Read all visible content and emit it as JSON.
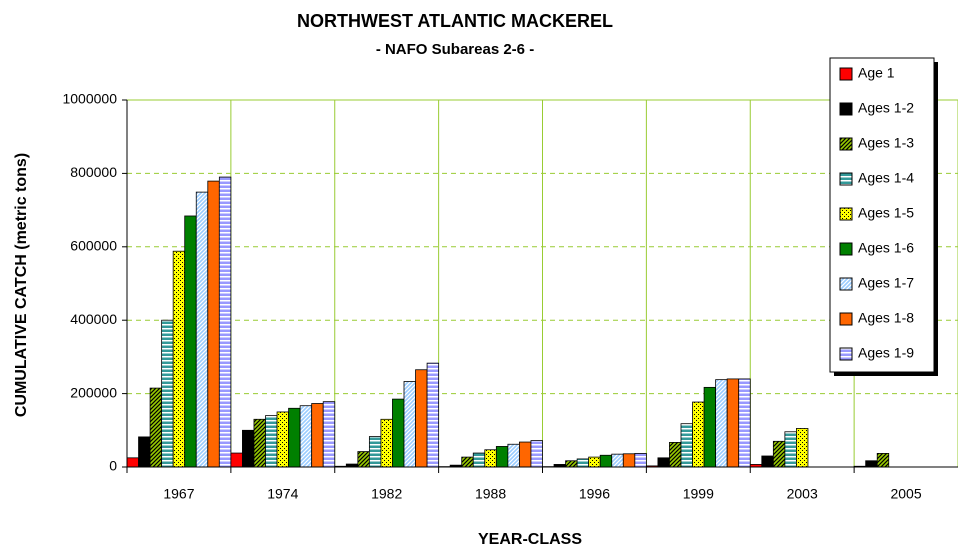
{
  "chart_data": {
    "type": "bar",
    "title": "NORTHWEST ATLANTIC MACKEREL",
    "subtitle": "- NAFO Subareas 2-6 -",
    "x_label": "YEAR-CLASS",
    "y_label": "CUMULATIVE CATCH (metric tons)",
    "categories": [
      "1967",
      "1974",
      "1982",
      "1988",
      "1996",
      "1999",
      "2003",
      "2005"
    ],
    "series": [
      {
        "name": "Age 1",
        "color": "#ff0000",
        "pattern": "solid",
        "values": [
          25000,
          38000,
          2000,
          1000,
          1000,
          3000,
          7000,
          2000
        ]
      },
      {
        "name": "Ages 1-2",
        "color": "#000000",
        "pattern": "solid",
        "values": [
          82000,
          100000,
          8000,
          5000,
          7000,
          25000,
          30000,
          17000
        ]
      },
      {
        "name": "Ages 1-3",
        "color": "#99cc00",
        "pattern": "diagonal",
        "values": [
          215000,
          130000,
          42000,
          27000,
          17000,
          67000,
          70000,
          37000
        ]
      },
      {
        "name": "Ages 1-4",
        "color": "#339999",
        "pattern": "horizontal",
        "values": [
          400000,
          140000,
          83000,
          38000,
          22000,
          118000,
          96000,
          null
        ]
      },
      {
        "name": "Ages 1-5",
        "color": "#ffff00",
        "pattern": "dots",
        "values": [
          588000,
          150000,
          130000,
          47000,
          27000,
          177000,
          105000,
          null
        ]
      },
      {
        "name": "Ages 1-6",
        "color": "#008000",
        "pattern": "solid",
        "values": [
          684000,
          160000,
          185000,
          56000,
          32000,
          217000,
          null,
          null
        ]
      },
      {
        "name": "Ages 1-7",
        "color": "#99ccff",
        "pattern": "diagonal",
        "values": [
          749000,
          167000,
          233000,
          62000,
          35000,
          238000,
          null,
          null
        ]
      },
      {
        "name": "Ages 1-8",
        "color": "#ff6600",
        "pattern": "solid",
        "values": [
          779000,
          173000,
          265000,
          68000,
          36000,
          240000,
          null,
          null
        ]
      },
      {
        "name": "Ages 1-9",
        "color": "#9999ff",
        "pattern": "horizontal",
        "values": [
          790000,
          178000,
          283000,
          72000,
          37000,
          240000,
          null,
          null
        ]
      }
    ],
    "ylim": [
      0,
      1000000
    ],
    "yticks": [
      0,
      200000,
      400000,
      600000,
      800000,
      1000000
    ],
    "grid": true,
    "legend": "top-right"
  }
}
